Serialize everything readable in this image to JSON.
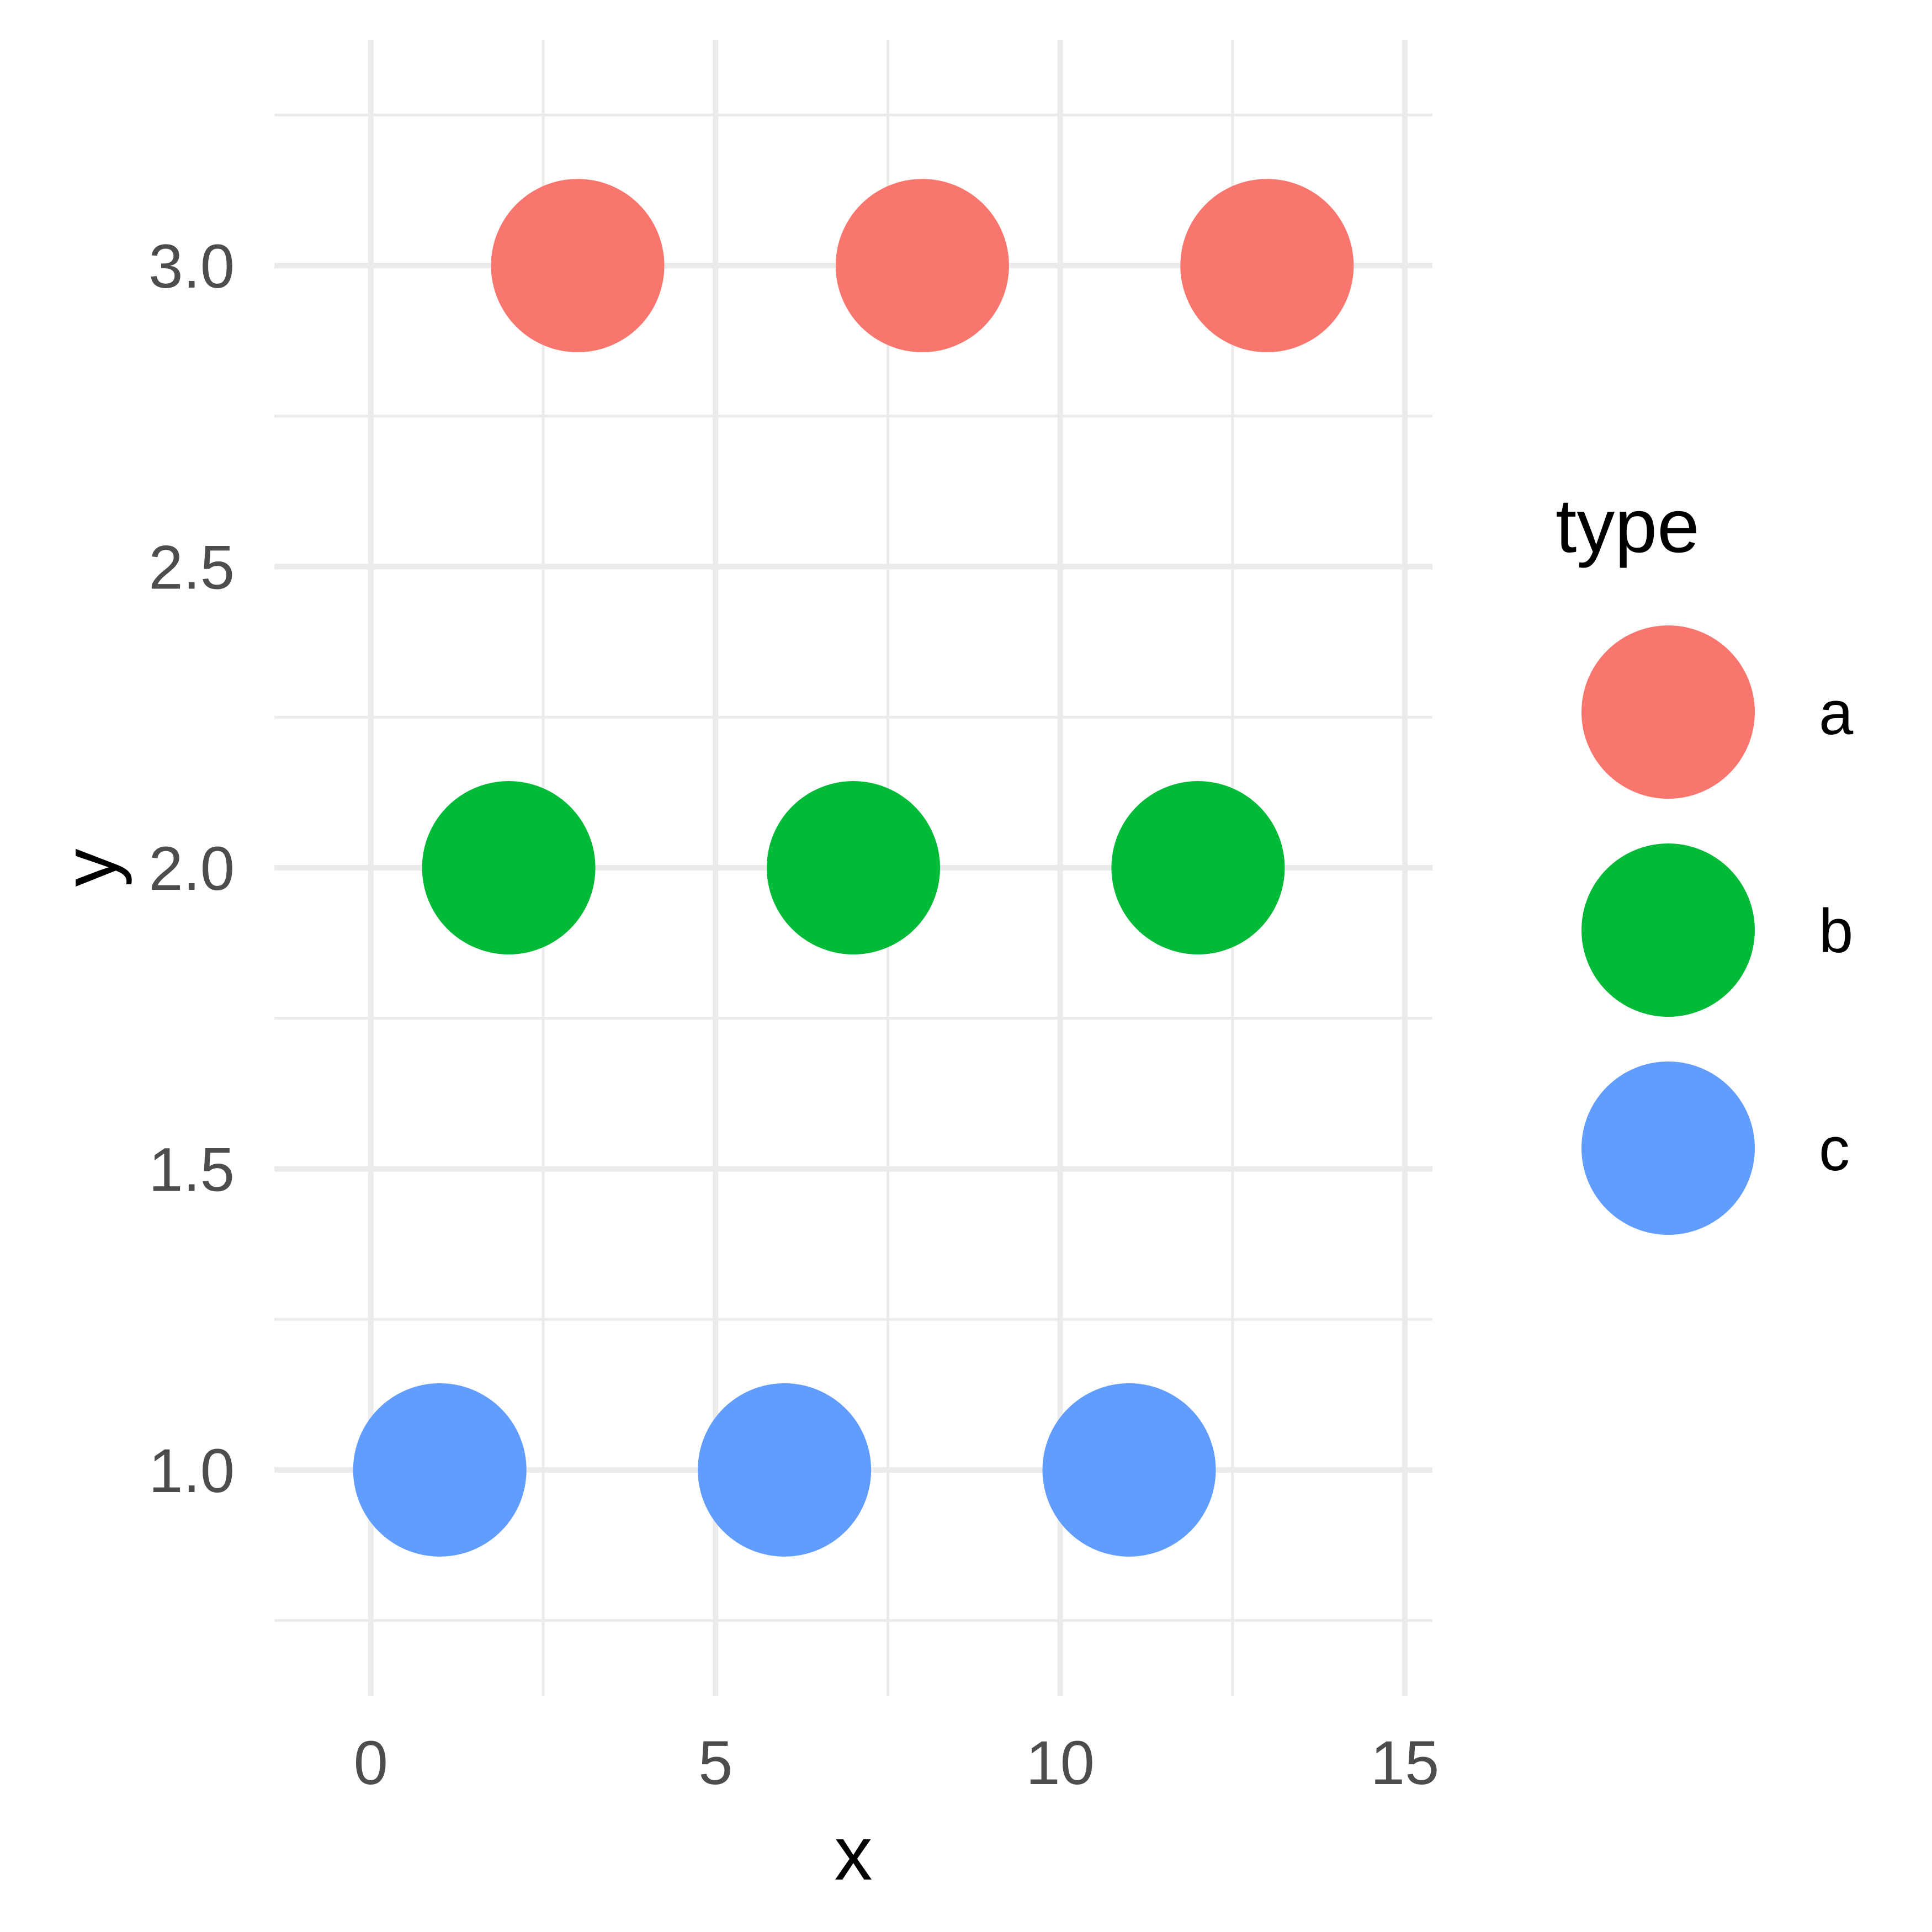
{
  "chart_data": {
    "type": "scatter",
    "title": "",
    "xlabel": "x",
    "ylabel": "y",
    "xlim": [
      -1.4,
      15.4
    ],
    "ylim": [
      0.625,
      3.375
    ],
    "x_ticks": [
      0,
      5,
      10,
      15
    ],
    "x_tick_labels": [
      "0",
      "5",
      "10",
      "15"
    ],
    "x_minor_ticks": [
      2.5,
      7.5,
      12.5
    ],
    "y_ticks": [
      1.0,
      1.5,
      2.0,
      2.5,
      3.0
    ],
    "y_tick_labels": [
      "1.0",
      "1.5",
      "2.0",
      "2.5",
      "3.0"
    ],
    "y_minor_ticks": [
      0.75,
      1.25,
      1.75,
      2.25,
      2.75,
      3.25
    ],
    "grid": true,
    "legend": {
      "title": "type",
      "position": "right"
    },
    "series": [
      {
        "name": "a",
        "color": "#F8766D",
        "points": [
          {
            "x": 3,
            "y": 3
          },
          {
            "x": 8,
            "y": 3
          },
          {
            "x": 13,
            "y": 3
          }
        ]
      },
      {
        "name": "b",
        "color": "#00BA38",
        "points": [
          {
            "x": 2,
            "y": 2
          },
          {
            "x": 7,
            "y": 2
          },
          {
            "x": 12,
            "y": 2
          }
        ]
      },
      {
        "name": "c",
        "color": "#619CFF",
        "points": [
          {
            "x": 1,
            "y": 1
          },
          {
            "x": 6,
            "y": 1
          },
          {
            "x": 11,
            "y": 1
          }
        ]
      }
    ]
  }
}
